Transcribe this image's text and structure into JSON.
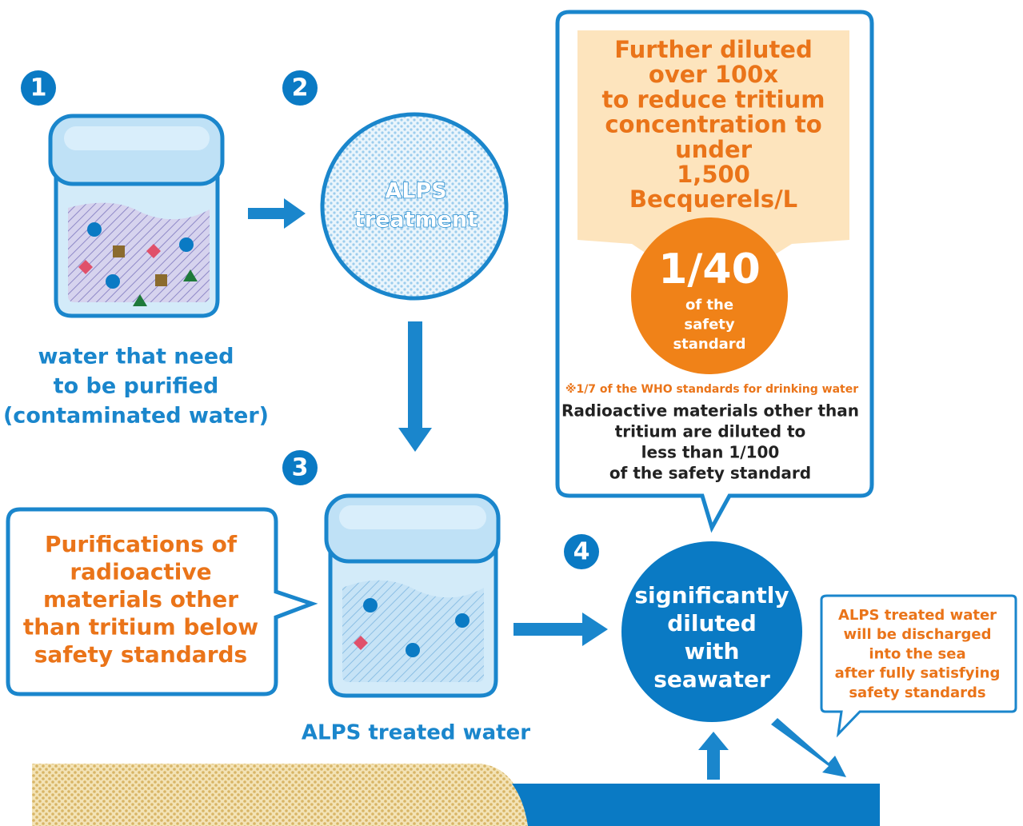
{
  "steps": [
    {
      "number": "1",
      "label": [
        "water that need",
        "to be purified",
        "(contaminated water)"
      ]
    },
    {
      "number": "2",
      "label": [
        "ALPS",
        "treatment"
      ]
    },
    {
      "number": "3",
      "label": [
        "ALPS treated water"
      ]
    },
    {
      "number": "4",
      "label": [
        "significantly",
        "diluted",
        "with",
        "seawater"
      ]
    }
  ],
  "callout_left": {
    "lines": [
      "Purifications of",
      "radioactive",
      "materials other",
      "than tritium below",
      "safety standards"
    ]
  },
  "callout_top": {
    "header": [
      "Further diluted",
      "over 100x",
      "to reduce tritium",
      "concentration to",
      "under",
      "1,500",
      "Becquerels/L"
    ],
    "badge": {
      "fraction": "1/40",
      "lines": [
        "of the",
        "safety",
        "standard"
      ]
    },
    "note": "※1/7 of the WHO standards for drinking water",
    "body": [
      "Radioactive materials other than",
      "tritium are diluted to",
      "less than 1/100",
      "of the safety standard"
    ]
  },
  "callout_right": {
    "lines": [
      "ALPS treated water",
      "will be discharged",
      "into the sea",
      "after fully satisfying",
      "safety standards"
    ]
  }
}
